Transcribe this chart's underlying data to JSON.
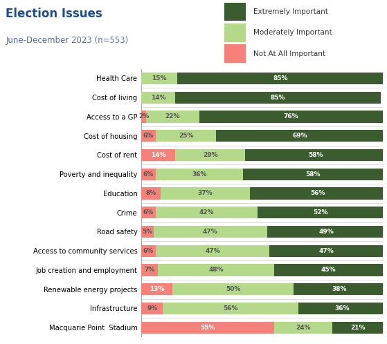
{
  "title": "Election Issues",
  "subtitle": "June-December 2023 (n=553)",
  "categories": [
    "Health Care",
    "Cost of living",
    "Access to a GP",
    "Cost of housing",
    "Cost of rent",
    "Poverty and inequality",
    "Education",
    "Crime",
    "Road safety",
    "Access to community services",
    "Job creation and employment",
    "Renewable energy projects",
    "Infrastructure",
    "Macquarie Point  Stadium"
  ],
  "not_at_all": [
    0,
    0,
    2,
    6,
    14,
    6,
    8,
    6,
    5,
    6,
    7,
    13,
    9,
    55
  ],
  "moderately": [
    15,
    14,
    22,
    25,
    29,
    36,
    37,
    42,
    47,
    47,
    48,
    50,
    56,
    24
  ],
  "extremely": [
    85,
    85,
    76,
    69,
    58,
    58,
    56,
    52,
    49,
    47,
    45,
    38,
    36,
    21
  ],
  "color_not_at_all": "#f4827a",
  "color_moderately": "#b5d98a",
  "color_extremely": "#3a5c2e",
  "color_title": "#1f4e8c",
  "color_subtitle": "#5b6da5",
  "color_bg_header": "#e8e8e8",
  "color_bg_main": "#ffffff",
  "legend_labels": [
    "Extremely Important",
    "Moderately Important",
    "Not At All Important"
  ],
  "legend_colors": [
    "#3a5c2e",
    "#b5d98a",
    "#f4827a"
  ],
  "bar_text_color_light": "#ffffff",
  "bar_text_color_dark": "#555555"
}
